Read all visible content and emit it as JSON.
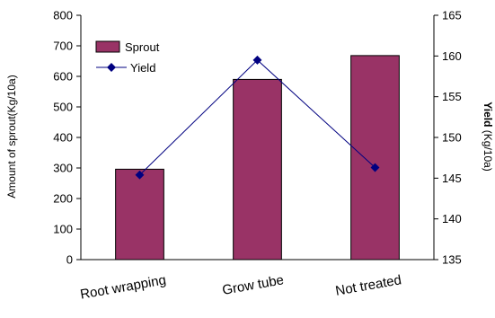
{
  "chart_data": {
    "type": "bar",
    "categories": [
      "Root wrapping",
      "Grow tube",
      "Not treated"
    ],
    "series": [
      {
        "name": "Sprout",
        "type": "bar",
        "axis": "left",
        "values": [
          296,
          590,
          668
        ],
        "color": "#993366"
      },
      {
        "name": "Yield",
        "type": "line",
        "axis": "right",
        "values": [
          145.4,
          159.5,
          146.3
        ],
        "color": "#000080"
      }
    ],
    "ylabel": "Amount of sprout(Kg/10a)",
    "y2label_bold": "Yield",
    "y2label_rest": " (Kg/10a)",
    "ylim": [
      0,
      800
    ],
    "yticks": [
      "0",
      "100",
      "200",
      "300",
      "400",
      "500",
      "600",
      "700",
      "800"
    ],
    "y2lim": [
      135,
      165
    ],
    "y2ticks": [
      "135",
      "140",
      "145",
      "150",
      "155",
      "160",
      "165"
    ],
    "legend_position": "top-left",
    "grid": false
  }
}
